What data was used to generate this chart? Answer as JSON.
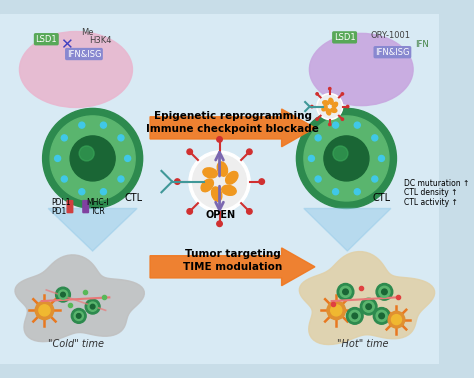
{
  "bg_color": "#c8dde8",
  "top_arrow_text1": "Epigenetic reprogramming",
  "top_arrow_text2": "Immune checkpoint blockade",
  "bottom_arrow_text1": "Tumor targeting",
  "bottom_arrow_text2": "TIME modulation",
  "label_cold": "\"Cold\" time",
  "label_hot": "\"Hot\" time",
  "label_ctl": "CTL",
  "label_open": "OPEN",
  "label_lsd1_left": "LSD1",
  "label_me_left": "Me",
  "label_h3k4_left": "H3K4",
  "label_ifnisg_left": "IFN&ISG",
  "label_pdl1": "PDL1",
  "label_mhci": "MHC-I",
  "label_pd1": "PD1",
  "label_tcr": "TCR",
  "label_lsd1_right": "LSD1",
  "label_ory1001": "ORY-1001",
  "label_ifnisg_right": "IFN&ISG",
  "label_ifn": "IFN",
  "label_dc": "DC muturation ↑",
  "label_ctl_density": "CTL density ↑",
  "label_ctl_activity": "CTL activity ↑",
  "arrow_orange": "#f07820",
  "arrow_purple": "#7b68b0",
  "cell_green_dark": "#2d8a4e",
  "cell_green_light": "#5ab56e",
  "nucleus_green": "#1a6635",
  "blob_pink": "#e8b8d0",
  "blob_purple": "#c8a8e0",
  "tumor_gray": "#c0c0c0",
  "tumor_hot": "#e0d0a8",
  "nanoparticle_orange": "#f09820",
  "spike_red": "#d03030",
  "spike_teal": "#409898",
  "bg_light": "#d8eaf4",
  "sun_body": "#e09030",
  "sun_inner": "#f0b830",
  "sun_spike": "#e87820",
  "dot_cyan": "#40c8e8",
  "receptor_red": "#d04040",
  "receptor_purple": "#8040a0",
  "lsd1_green": "#58a858",
  "ifnisg_blue": "#8888d0",
  "x_blue": "#4040c0",
  "green_dot": "#58b858",
  "pink_line": "#e87878"
}
